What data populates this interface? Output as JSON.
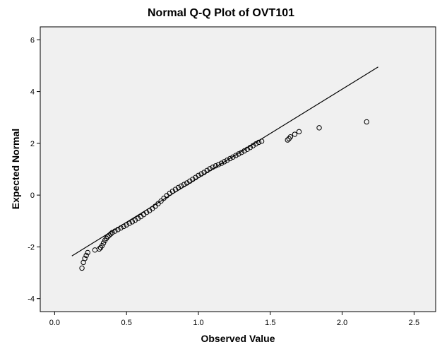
{
  "chart_data": {
    "type": "scatter",
    "title": "Normal Q-Q Plot of OVT101",
    "xlabel": "Observed Value",
    "ylabel": "Expected Normal",
    "xlim": [
      -0.1,
      2.65
    ],
    "ylim": [
      -4.5,
      6.5
    ],
    "xticks": [
      "0.0",
      "0.5",
      "1.0",
      "1.5",
      "2.0",
      "2.5"
    ],
    "xtick_values": [
      0.0,
      0.5,
      1.0,
      1.5,
      2.0,
      2.5
    ],
    "yticks": [
      "-4",
      "-2",
      "0",
      "2",
      "4",
      "6"
    ],
    "ytick_values": [
      -4,
      -2,
      0,
      2,
      4,
      6
    ],
    "grid": false,
    "plot_background": "#f0f0f0",
    "marker_color": "#000000",
    "reference_line": {
      "x": [
        0.12,
        2.25
      ],
      "y": [
        -2.35,
        4.95
      ]
    },
    "points": [
      {
        "x": 0.19,
        "y": -2.82
      },
      {
        "x": 0.2,
        "y": -2.6
      },
      {
        "x": 0.21,
        "y": -2.45
      },
      {
        "x": 0.22,
        "y": -2.33
      },
      {
        "x": 0.23,
        "y": -2.22
      },
      {
        "x": 0.28,
        "y": -2.12
      },
      {
        "x": 0.31,
        "y": -2.08
      },
      {
        "x": 0.32,
        "y": -2.03
      },
      {
        "x": 0.33,
        "y": -1.95
      },
      {
        "x": 0.34,
        "y": -1.85
      },
      {
        "x": 0.35,
        "y": -1.75
      },
      {
        "x": 0.36,
        "y": -1.67
      },
      {
        "x": 0.37,
        "y": -1.6
      },
      {
        "x": 0.38,
        "y": -1.55
      },
      {
        "x": 0.39,
        "y": -1.5
      },
      {
        "x": 0.4,
        "y": -1.45
      },
      {
        "x": 0.42,
        "y": -1.39
      },
      {
        "x": 0.44,
        "y": -1.33
      },
      {
        "x": 0.46,
        "y": -1.27
      },
      {
        "x": 0.48,
        "y": -1.21
      },
      {
        "x": 0.5,
        "y": -1.15
      },
      {
        "x": 0.52,
        "y": -1.09
      },
      {
        "x": 0.54,
        "y": -1.03
      },
      {
        "x": 0.56,
        "y": -0.97
      },
      {
        "x": 0.58,
        "y": -0.9
      },
      {
        "x": 0.6,
        "y": -0.83
      },
      {
        "x": 0.62,
        "y": -0.75
      },
      {
        "x": 0.64,
        "y": -0.67
      },
      {
        "x": 0.66,
        "y": -0.6
      },
      {
        "x": 0.68,
        "y": -0.52
      },
      {
        "x": 0.7,
        "y": -0.43
      },
      {
        "x": 0.72,
        "y": -0.33
      },
      {
        "x": 0.74,
        "y": -0.23
      },
      {
        "x": 0.76,
        "y": -0.12
      },
      {
        "x": 0.78,
        "y": -0.02
      },
      {
        "x": 0.8,
        "y": 0.07
      },
      {
        "x": 0.82,
        "y": 0.15
      },
      {
        "x": 0.84,
        "y": 0.22
      },
      {
        "x": 0.86,
        "y": 0.29
      },
      {
        "x": 0.88,
        "y": 0.35
      },
      {
        "x": 0.9,
        "y": 0.41
      },
      {
        "x": 0.92,
        "y": 0.47
      },
      {
        "x": 0.94,
        "y": 0.54
      },
      {
        "x": 0.96,
        "y": 0.61
      },
      {
        "x": 0.98,
        "y": 0.68
      },
      {
        "x": 1.0,
        "y": 0.76
      },
      {
        "x": 1.02,
        "y": 0.82
      },
      {
        "x": 1.04,
        "y": 0.88
      },
      {
        "x": 1.06,
        "y": 0.95
      },
      {
        "x": 1.08,
        "y": 1.02
      },
      {
        "x": 1.1,
        "y": 1.08
      },
      {
        "x": 1.12,
        "y": 1.13
      },
      {
        "x": 1.14,
        "y": 1.18
      },
      {
        "x": 1.16,
        "y": 1.23
      },
      {
        "x": 1.18,
        "y": 1.29
      },
      {
        "x": 1.2,
        "y": 1.35
      },
      {
        "x": 1.22,
        "y": 1.41
      },
      {
        "x": 1.24,
        "y": 1.47
      },
      {
        "x": 1.26,
        "y": 1.53
      },
      {
        "x": 1.28,
        "y": 1.59
      },
      {
        "x": 1.3,
        "y": 1.65
      },
      {
        "x": 1.32,
        "y": 1.71
      },
      {
        "x": 1.34,
        "y": 1.77
      },
      {
        "x": 1.36,
        "y": 1.84
      },
      {
        "x": 1.38,
        "y": 1.91
      },
      {
        "x": 1.4,
        "y": 1.98
      },
      {
        "x": 1.42,
        "y": 2.04
      },
      {
        "x": 1.44,
        "y": 2.08
      },
      {
        "x": 1.62,
        "y": 2.13
      },
      {
        "x": 1.63,
        "y": 2.18
      },
      {
        "x": 1.64,
        "y": 2.25
      },
      {
        "x": 1.67,
        "y": 2.35
      },
      {
        "x": 1.7,
        "y": 2.45
      },
      {
        "x": 1.84,
        "y": 2.6
      },
      {
        "x": 2.17,
        "y": 2.83
      }
    ]
  }
}
